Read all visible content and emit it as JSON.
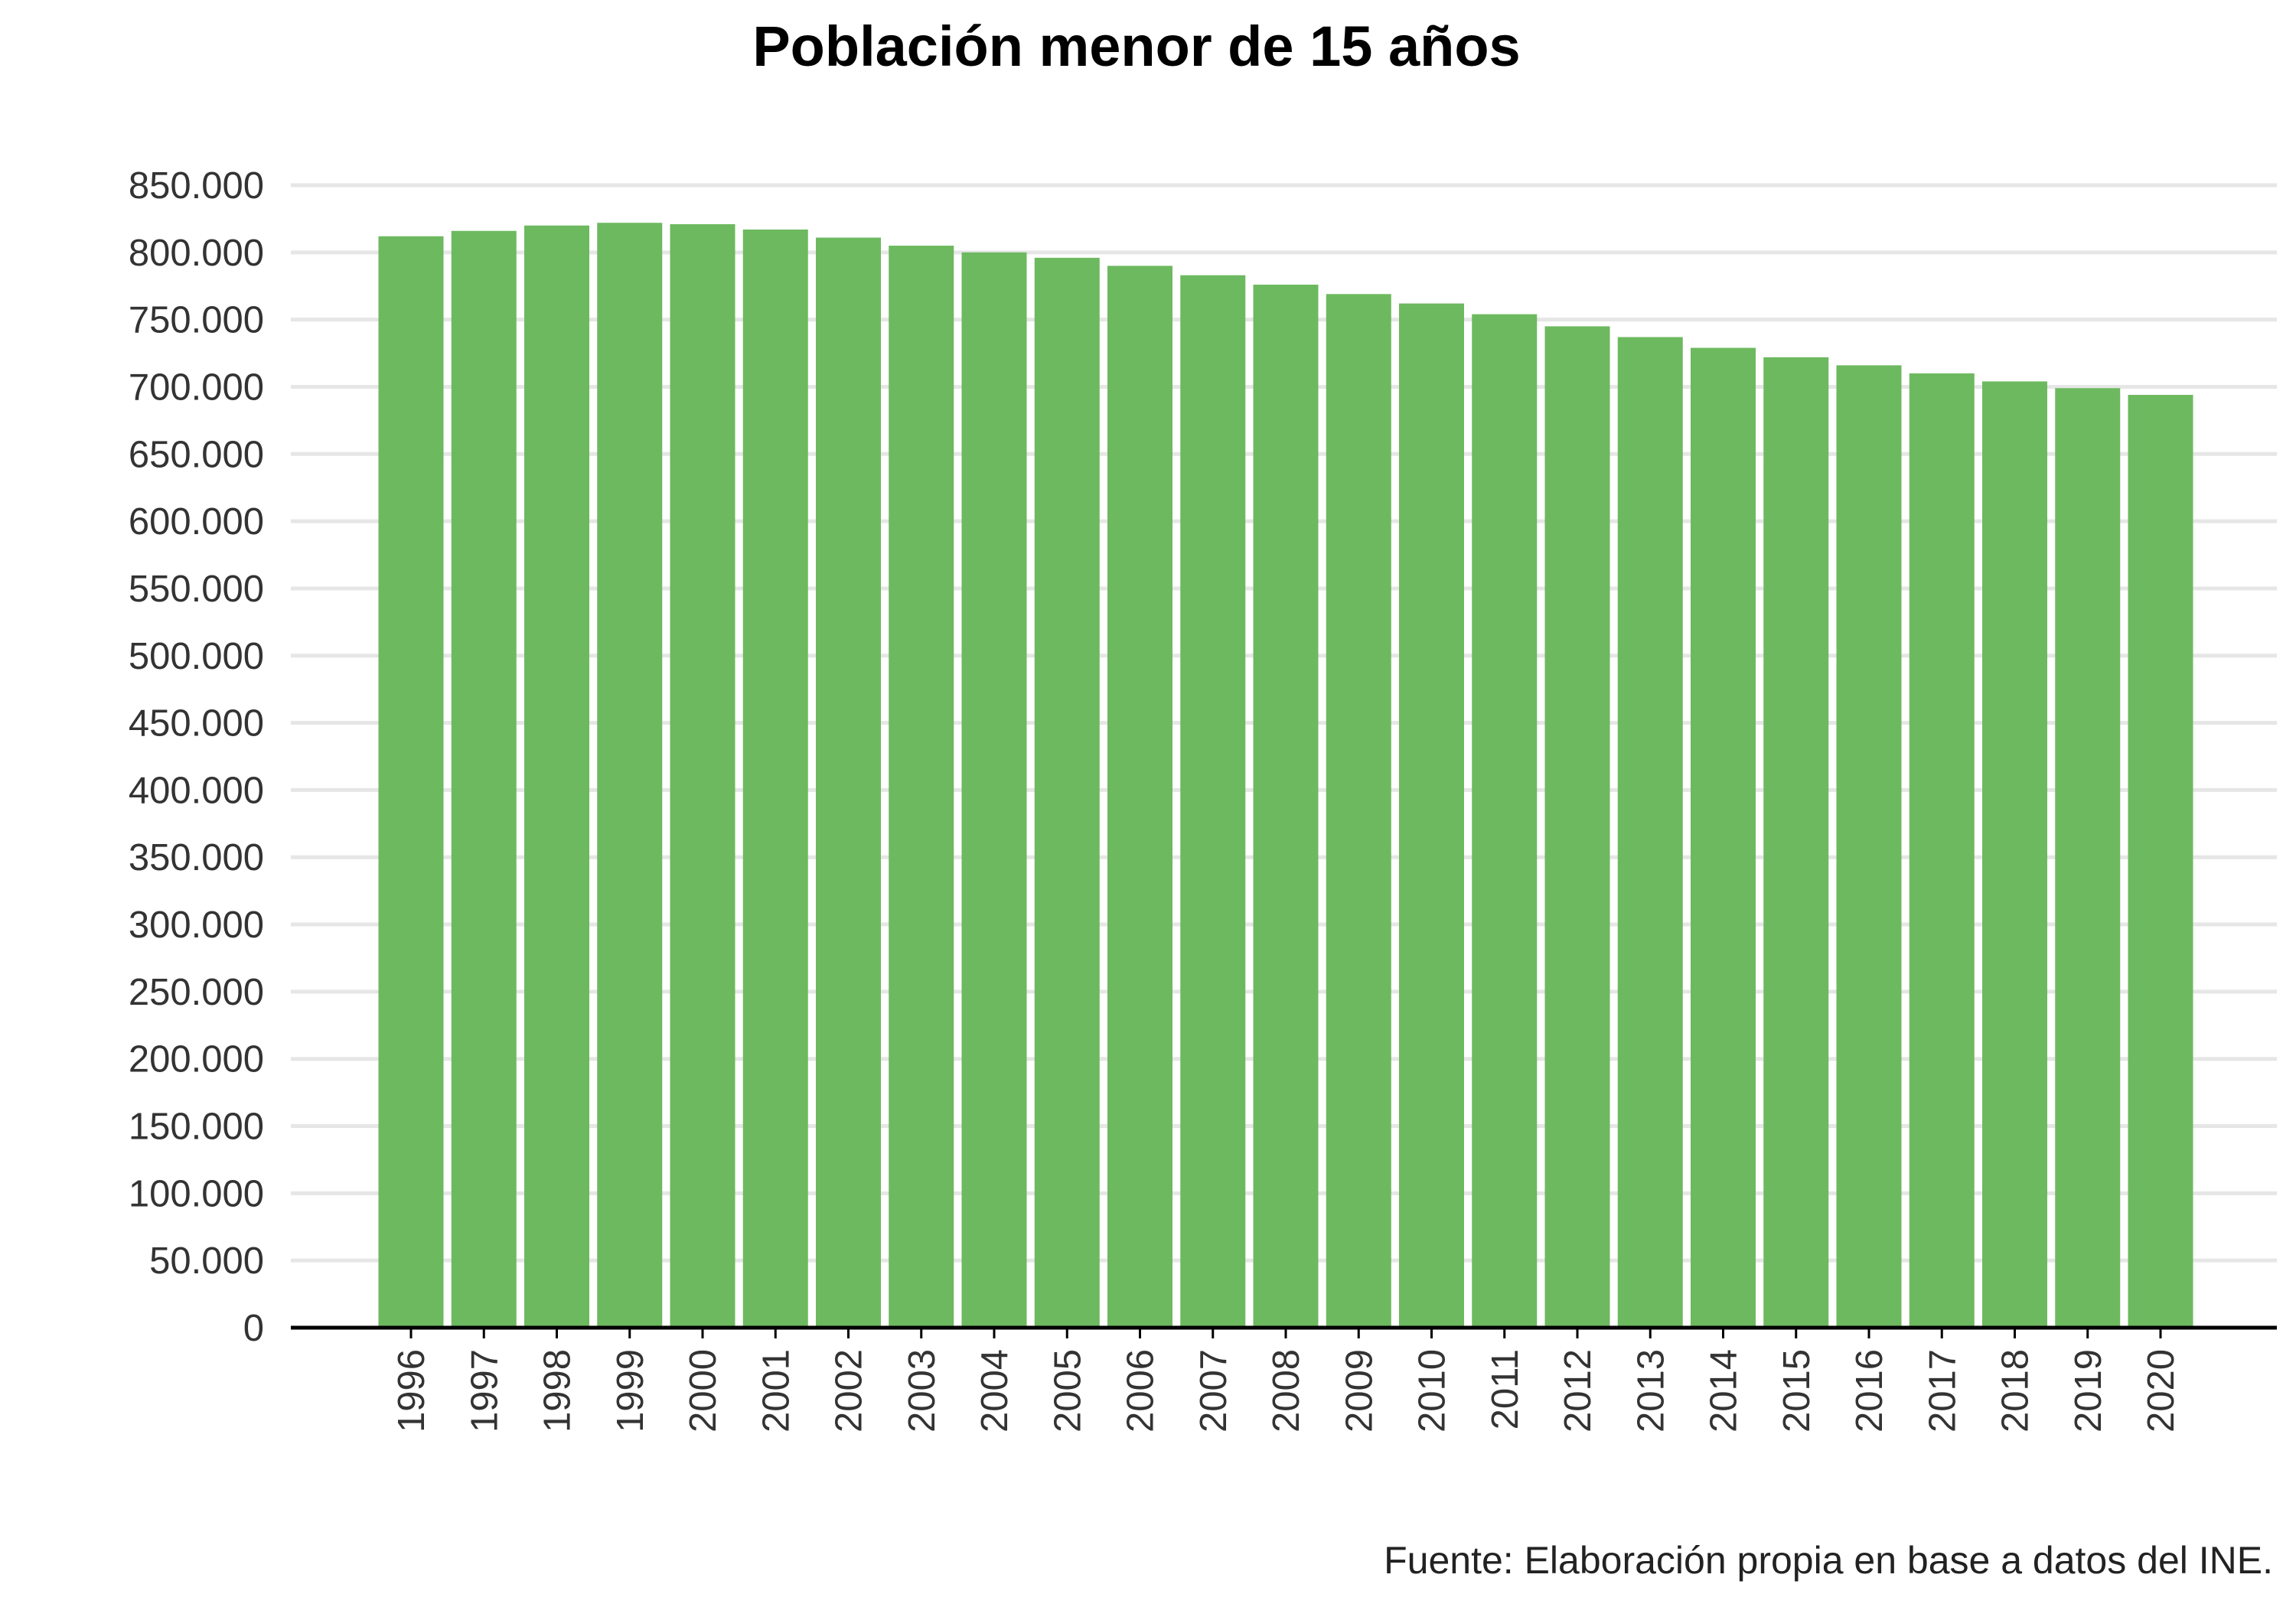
{
  "colors": {
    "bar": "#6db95f",
    "grid": "#e6e6e6",
    "axis": "#000000",
    "text": "#333333"
  },
  "chart_data": {
    "type": "bar",
    "title": "Población menor de 15 años",
    "source": "Fuente: Elaboración propia en base a datos del INE.",
    "xlabel": "",
    "ylabel": "",
    "ylim": [
      0,
      850000
    ],
    "ytick_values": [
      0,
      50000,
      100000,
      150000,
      200000,
      250000,
      300000,
      350000,
      400000,
      450000,
      500000,
      550000,
      600000,
      650000,
      700000,
      750000,
      800000,
      850000
    ],
    "ytick_labels": [
      "0",
      "50.000",
      "100.000",
      "150.000",
      "200.000",
      "250.000",
      "300.000",
      "350.000",
      "400.000",
      "450.000",
      "500.000",
      "550.000",
      "600.000",
      "650.000",
      "700.000",
      "750.000",
      "800.000",
      "850.000"
    ],
    "grid": true,
    "categories": [
      "1996",
      "1997",
      "1998",
      "1999",
      "2000",
      "2001",
      "2002",
      "2003",
      "2004",
      "2005",
      "2006",
      "2007",
      "2008",
      "2009",
      "2010",
      "2011",
      "2012",
      "2013",
      "2014",
      "2015",
      "2016",
      "2017",
      "2018",
      "2019",
      "2020"
    ],
    "values": [
      812000,
      816000,
      820000,
      822000,
      821000,
      817000,
      811000,
      805000,
      800000,
      796000,
      790000,
      783000,
      776000,
      769000,
      762000,
      754000,
      745000,
      737000,
      729000,
      722000,
      716000,
      710000,
      704000,
      699000,
      694000
    ]
  }
}
